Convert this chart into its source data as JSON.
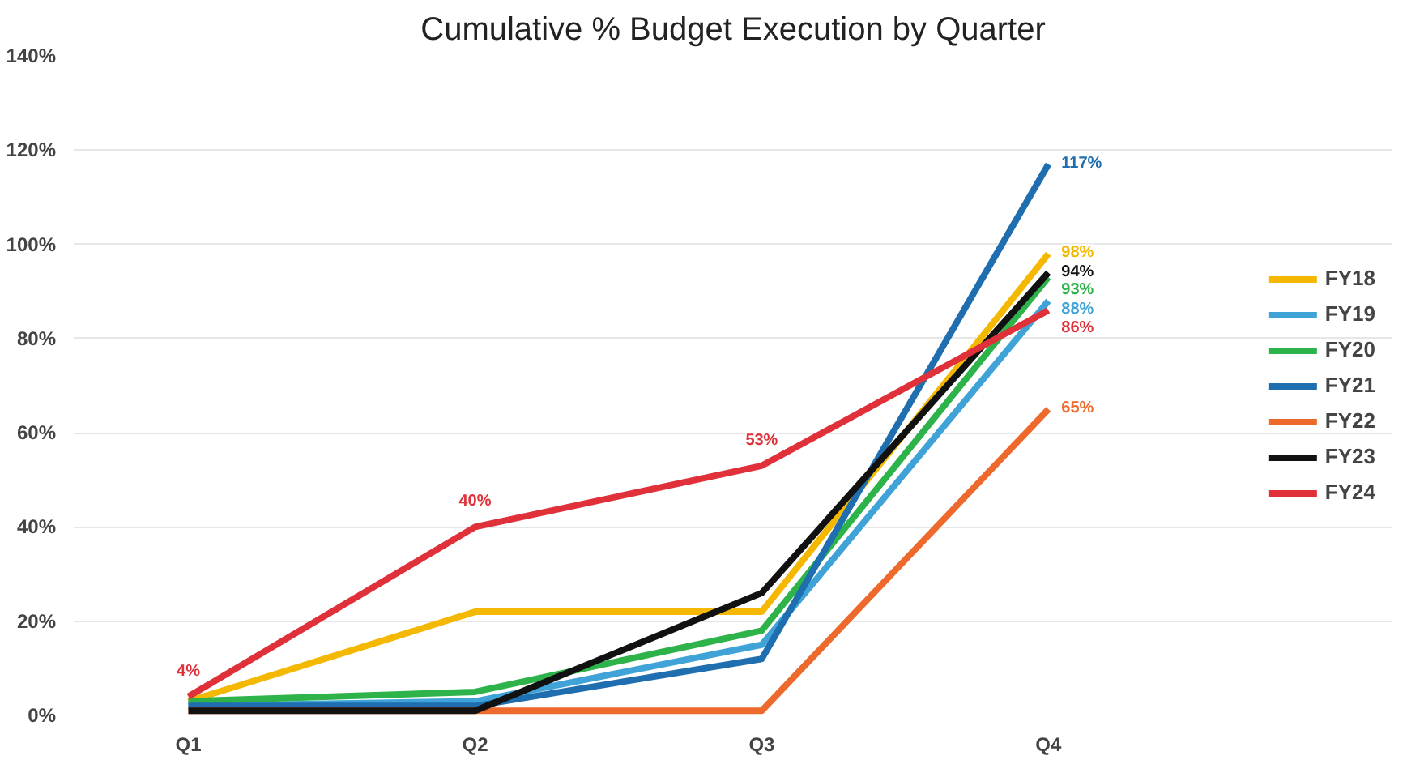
{
  "chart_data": {
    "type": "line",
    "title": "Cumulative % Budget Execution by Quarter",
    "categories": [
      "Q1",
      "Q2",
      "Q3",
      "Q4"
    ],
    "ylim": [
      0,
      140
    ],
    "yticks": [
      {
        "value": 0,
        "label": "0%"
      },
      {
        "value": 20,
        "label": "20%"
      },
      {
        "value": 40,
        "label": "40%"
      },
      {
        "value": 60,
        "label": "60%"
      },
      {
        "value": 80,
        "label": "80%"
      },
      {
        "value": 100,
        "label": "100%"
      },
      {
        "value": 120,
        "label": "120%"
      },
      {
        "value": 140,
        "label": "140%"
      }
    ],
    "grid": "y",
    "legend": "right",
    "marker": "none",
    "line_style": "solid",
    "series": [
      {
        "name": "FY18",
        "color": "#f5b800",
        "values": [
          3,
          22,
          22,
          98
        ],
        "value_labels": [
          null,
          null,
          null,
          "98%"
        ]
      },
      {
        "name": "FY19",
        "color": "#3fa3d8",
        "values": [
          2,
          3,
          15,
          88
        ],
        "value_labels": [
          null,
          null,
          null,
          "88%"
        ]
      },
      {
        "name": "FY20",
        "color": "#2db34a",
        "values": [
          3,
          5,
          18,
          93
        ],
        "value_labels": [
          null,
          null,
          null,
          "93%"
        ]
      },
      {
        "name": "FY21",
        "color": "#1f6fb0",
        "values": [
          2,
          2,
          12,
          117
        ],
        "value_labels": [
          null,
          null,
          null,
          "117%"
        ]
      },
      {
        "name": "FY22",
        "color": "#ee6a2c",
        "values": [
          1,
          1,
          1,
          65
        ],
        "value_labels": [
          null,
          null,
          null,
          "65%"
        ]
      },
      {
        "name": "FY23",
        "color": "#111111",
        "values": [
          1,
          1,
          26,
          94
        ],
        "value_labels": [
          null,
          null,
          null,
          "94%"
        ]
      },
      {
        "name": "FY24",
        "color": "#e0303a",
        "values": [
          4,
          40,
          53,
          86
        ],
        "value_labels": [
          "4%",
          "40%",
          "53%",
          "86%"
        ]
      }
    ]
  }
}
